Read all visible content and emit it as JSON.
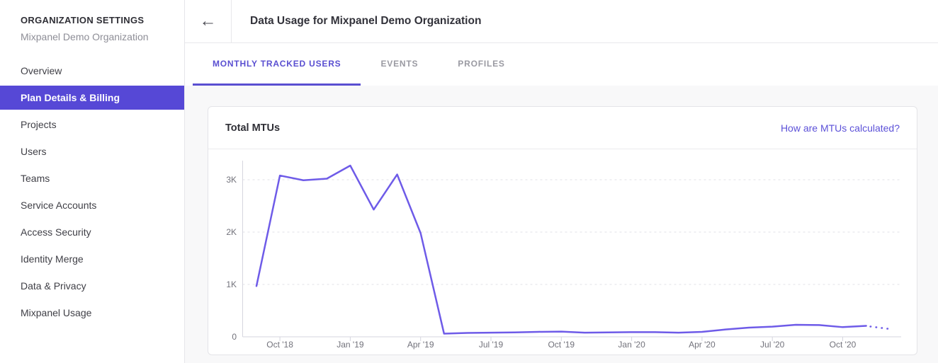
{
  "sidebar": {
    "title": "ORGANIZATION SETTINGS",
    "subtitle": "Mixpanel Demo Organization",
    "items": [
      {
        "label": "Overview",
        "active": false
      },
      {
        "label": "Plan Details & Billing",
        "active": true
      },
      {
        "label": "Projects",
        "active": false
      },
      {
        "label": "Users",
        "active": false
      },
      {
        "label": "Teams",
        "active": false
      },
      {
        "label": "Service Accounts",
        "active": false
      },
      {
        "label": "Access Security",
        "active": false
      },
      {
        "label": "Identity Merge",
        "active": false
      },
      {
        "label": "Data & Privacy",
        "active": false
      },
      {
        "label": "Mixpanel Usage",
        "active": false
      }
    ]
  },
  "header": {
    "title": "Data Usage for Mixpanel Demo Organization",
    "back_icon": "←"
  },
  "tabs": [
    {
      "label": "MONTHLY TRACKED USERS",
      "active": true
    },
    {
      "label": "EVENTS",
      "active": false
    },
    {
      "label": "PROFILES",
      "active": false
    }
  ],
  "card": {
    "title": "Total MTUs",
    "link": "How are MTUs calculated?"
  },
  "colors": {
    "accent": "#5648d6",
    "active_tab": "#5a4fd1",
    "link": "#5c51d8",
    "line": "#6e5be8",
    "grid": "#e2e2e7",
    "axis": "#d6d6df",
    "axis_label": "#72727b"
  },
  "chart_data": {
    "type": "line",
    "title": "Total MTUs",
    "legend": "none",
    "grid": "horizontal-dashed",
    "line_color": "#6e5be8",
    "ylim": [
      0,
      3400
    ],
    "x": [
      "Sep '18",
      "Oct '18",
      "Nov '18",
      "Dec '18",
      "Jan '19",
      "Feb '19",
      "Mar '19",
      "Apr '19",
      "May '19",
      "Jun '19",
      "Jul '19",
      "Aug '19",
      "Sep '19",
      "Oct '19",
      "Nov '19",
      "Dec '19",
      "Jan '20",
      "Feb '20",
      "Mar '20",
      "Apr '20",
      "May '20",
      "Jun '20",
      "Jul '20",
      "Aug '20",
      "Sep '20",
      "Oct '20",
      "Nov '20"
    ],
    "values": [
      970,
      3080,
      2990,
      3020,
      3270,
      2430,
      3100,
      1980,
      60,
      75,
      80,
      85,
      95,
      100,
      80,
      85,
      90,
      90,
      80,
      95,
      140,
      175,
      195,
      230,
      225,
      185,
      210
    ],
    "projection": {
      "x": "Dec '20",
      "value": 150,
      "style": "dotted"
    },
    "x_ticks": [
      {
        "label": "Oct '18",
        "month_index": 1
      },
      {
        "label": "Jan '19",
        "month_index": 4
      },
      {
        "label": "Apr '19",
        "month_index": 7
      },
      {
        "label": "Jul '19",
        "month_index": 10
      },
      {
        "label": "Oct '19",
        "month_index": 13
      },
      {
        "label": "Jan '20",
        "month_index": 16
      },
      {
        "label": "Apr '20",
        "month_index": 19
      },
      {
        "label": "Jul '20",
        "month_index": 22
      },
      {
        "label": "Oct '20",
        "month_index": 25
      }
    ],
    "y_ticks": [
      {
        "label": "0",
        "value": 0
      },
      {
        "label": "1K",
        "value": 1000
      },
      {
        "label": "2K",
        "value": 2000
      },
      {
        "label": "3K",
        "value": 3000
      }
    ]
  }
}
